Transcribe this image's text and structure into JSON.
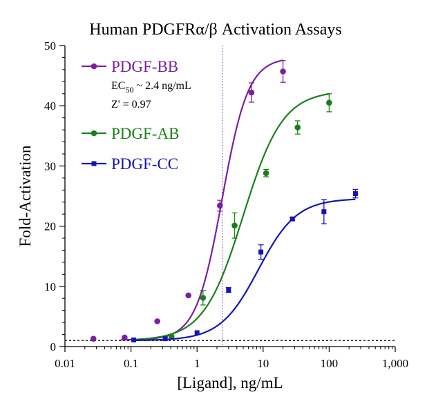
{
  "chart_data": {
    "type": "scatter",
    "title": "Human PDGFRα/β Activation Assays",
    "xlabel": "[Ligand], ng/mL",
    "ylabel": "Fold-Activation",
    "xscale": "log",
    "xlim": [
      0.01,
      1000
    ],
    "ylim": [
      0,
      50
    ],
    "x_ticks": [
      {
        "value": 0.01,
        "label": "0.01"
      },
      {
        "value": 0.1,
        "label": "0.1"
      },
      {
        "value": 1,
        "label": "1"
      },
      {
        "value": 10,
        "label": "10"
      },
      {
        "value": 100,
        "label": "100"
      },
      {
        "value": 1000,
        "label": "1,000"
      }
    ],
    "y_ticks": [
      {
        "value": 0,
        "label": "0"
      },
      {
        "value": 10,
        "label": "10"
      },
      {
        "value": 20,
        "label": "20"
      },
      {
        "value": 30,
        "label": "30"
      },
      {
        "value": 40,
        "label": "40"
      },
      {
        "value": 50,
        "label": "50"
      }
    ],
    "baseline": 1,
    "ec50_line": 2.4,
    "annotations": {
      "ec50_prefix": "EC",
      "ec50_sub": "50",
      "ec50_suffix": " ~ 2.4 ng/mL",
      "zprime": "Z' = 0.97"
    },
    "series": [
      {
        "name": "PDGF-BB",
        "color": "#7b1fa2",
        "marker": "circle",
        "points": [
          {
            "x": 0.027,
            "y": 1.3,
            "err": 0
          },
          {
            "x": 0.08,
            "y": 1.5,
            "err": 0
          },
          {
            "x": 0.25,
            "y": 4.2,
            "err": 0
          },
          {
            "x": 0.74,
            "y": 8.5,
            "err": 0
          },
          {
            "x": 2.22,
            "y": 23.4,
            "err": 0.9
          },
          {
            "x": 6.67,
            "y": 42.2,
            "err": 1.6
          },
          {
            "x": 20,
            "y": 45.7,
            "err": 1.8
          }
        ],
        "fit": {
          "bottom": 1.1,
          "top": 48,
          "ec50": 2.4,
          "hill": 2.2,
          "xmin": 0.07,
          "xmax": 20
        }
      },
      {
        "name": "PDGF-AB",
        "color": "#1a7f1a",
        "marker": "circle",
        "points": [
          {
            "x": 0.41,
            "y": 1.7,
            "err": 0
          },
          {
            "x": 1.23,
            "y": 8.1,
            "err": 1.2
          },
          {
            "x": 3.7,
            "y": 20.1,
            "err": 2.1
          },
          {
            "x": 11.1,
            "y": 28.8,
            "err": 0.6
          },
          {
            "x": 33.3,
            "y": 36.4,
            "err": 1.1
          },
          {
            "x": 100,
            "y": 40.5,
            "err": 1.5
          }
        ],
        "fit": {
          "bottom": 1.0,
          "top": 42.5,
          "ec50": 5.0,
          "hill": 1.45,
          "xmin": 0.1,
          "xmax": 100
        }
      },
      {
        "name": "PDGF-CC",
        "color": "#1414b4",
        "marker": "square",
        "points": [
          {
            "x": 0.11,
            "y": 1.1,
            "err": 0
          },
          {
            "x": 0.33,
            "y": 1.3,
            "err": 0
          },
          {
            "x": 1.0,
            "y": 2.3,
            "err": 0
          },
          {
            "x": 3.0,
            "y": 9.4,
            "err": 0.4
          },
          {
            "x": 9.26,
            "y": 15.7,
            "err": 1.2
          },
          {
            "x": 27.8,
            "y": 21.2,
            "err": 0.2
          },
          {
            "x": 83.3,
            "y": 22.4,
            "err": 2.0
          },
          {
            "x": 250,
            "y": 25.4,
            "err": 0.7
          }
        ],
        "fit": {
          "bottom": 1.0,
          "top": 24.6,
          "ec50": 8.5,
          "hill": 1.5,
          "xmin": 0.12,
          "xmax": 250
        }
      }
    ]
  }
}
